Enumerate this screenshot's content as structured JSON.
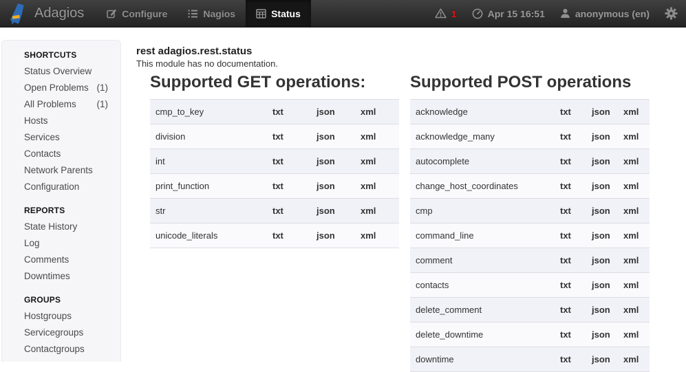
{
  "navbar": {
    "brand": "Adagios",
    "items": [
      {
        "label": "Configure",
        "icon": "edit-icon",
        "active": false
      },
      {
        "label": "Nagios",
        "icon": "list-icon",
        "active": false
      },
      {
        "label": "Status",
        "icon": "table-icon",
        "active": true
      }
    ],
    "alerts": {
      "count": "1"
    },
    "datetime": "Apr 15 16:51",
    "user": "anonymous (en)"
  },
  "sidebar": {
    "sections": [
      {
        "title": "SHORTCUTS",
        "items": [
          {
            "label": "Status Overview",
            "count": ""
          },
          {
            "label": "Open Problems",
            "count": "(1)"
          },
          {
            "label": "All Problems",
            "count": "(1)"
          },
          {
            "label": "Hosts",
            "count": ""
          },
          {
            "label": "Services",
            "count": ""
          },
          {
            "label": "Contacts",
            "count": ""
          },
          {
            "label": "Network Parents",
            "count": ""
          },
          {
            "label": "Configuration",
            "count": ""
          }
        ]
      },
      {
        "title": "REPORTS",
        "items": [
          {
            "label": "State History",
            "count": ""
          },
          {
            "label": "Log",
            "count": ""
          },
          {
            "label": "Comments",
            "count": ""
          },
          {
            "label": "Downtimes",
            "count": ""
          }
        ]
      },
      {
        "title": "GROUPS",
        "items": [
          {
            "label": "Hostgroups",
            "count": ""
          },
          {
            "label": "Servicegroups",
            "count": ""
          },
          {
            "label": "Contactgroups",
            "count": ""
          }
        ]
      }
    ]
  },
  "main": {
    "title": "rest adagios.rest.status",
    "subtitle": "This module has no documentation.",
    "get_section": {
      "heading": "Supported GET operations:",
      "links": [
        "txt",
        "json",
        "xml"
      ],
      "operations": [
        "cmp_to_key",
        "division",
        "int",
        "print_function",
        "str",
        "unicode_literals"
      ]
    },
    "post_section": {
      "heading": "Supported POST operations",
      "links": [
        "txt",
        "json",
        "xml"
      ],
      "operations": [
        "acknowledge",
        "acknowledge_many",
        "autocomplete",
        "change_host_coordinates",
        "cmp",
        "command_line",
        "comment",
        "contacts",
        "delete_comment",
        "delete_downtime",
        "downtime"
      ]
    }
  },
  "colors": {
    "alert_red": "#e01414",
    "logo_blue": "#2d6cb5",
    "logo_yellow": "#efad20",
    "navbar_text": "#8f8f8f",
    "row_stripe": "#f1f2f8"
  }
}
